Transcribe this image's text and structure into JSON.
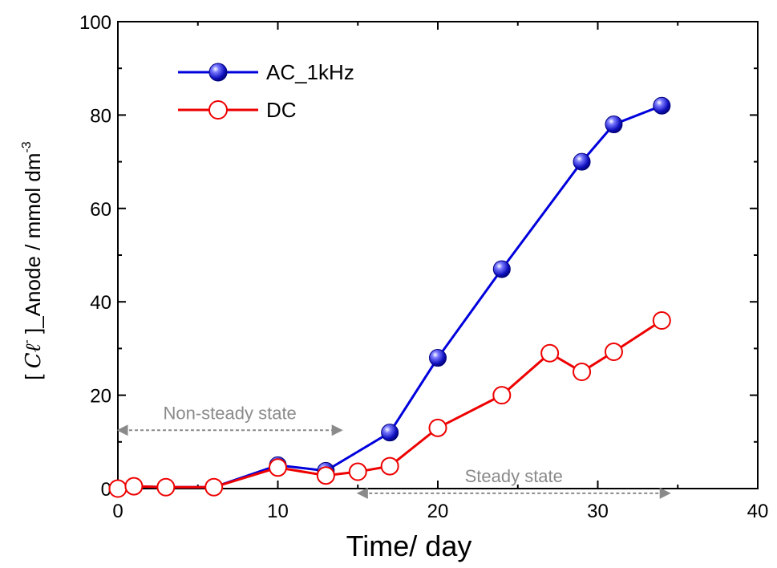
{
  "chart_data": {
    "type": "line",
    "xlabel": "Time/ day",
    "ylabel": {
      "open": "[ ",
      "ion": "Cℓ",
      "ion_sup": "-",
      "rest": " ]_Anode / mmol dm",
      "unit_sup": "-3"
    },
    "xlim": [
      0,
      40
    ],
    "ylim": [
      0,
      100
    ],
    "xticks": [
      0,
      10,
      20,
      30,
      40
    ],
    "yticks": [
      0,
      20,
      40,
      60,
      80,
      100
    ],
    "grid": false,
    "legend": "top-left",
    "series": [
      {
        "name": "AC_1kHz",
        "color": "#0000dd",
        "marker": "filled-sphere",
        "x": [
          0,
          1,
          3,
          6,
          10,
          13,
          17,
          20,
          24,
          29,
          31,
          34
        ],
        "y": [
          0,
          0.5,
          0.3,
          0.3,
          5,
          3.8,
          12,
          28,
          47,
          70,
          78,
          82
        ]
      },
      {
        "name": "DC",
        "color": "#ee0000",
        "marker": "open-circle",
        "x": [
          0,
          1,
          3,
          6,
          10,
          13,
          15,
          17,
          20,
          24,
          27,
          29,
          31,
          34
        ],
        "y": [
          0,
          0.5,
          0.3,
          0.3,
          4.5,
          2.8,
          3.6,
          4.8,
          13,
          20,
          29,
          25,
          29.3,
          36
        ]
      }
    ],
    "annotations": [
      {
        "text": "Non-steady state",
        "x_from": 0,
        "x_to": 14,
        "y": 12.5,
        "color": "#8a8a8a"
      },
      {
        "text": "Steady state",
        "x_from": 15,
        "x_to": 34.5,
        "y": -1,
        "color": "#8a8a8a"
      }
    ]
  }
}
